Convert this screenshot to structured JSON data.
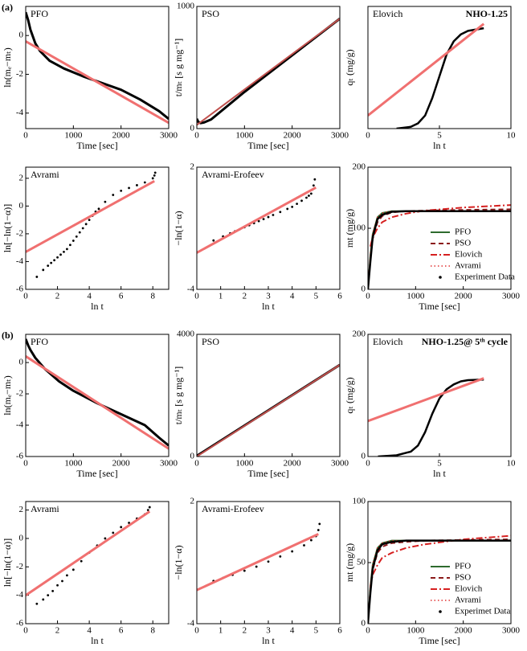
{
  "panel_labels": [
    "(a)",
    "(b)"
  ],
  "chart_data": [
    {
      "type": "line",
      "label": "PFO",
      "xlabel": "Time [sec]",
      "ylabel": "ln(mₑ−mₜ)",
      "xlim": [
        0,
        3000
      ],
      "xticks": [
        0,
        1000,
        2000,
        3000
      ],
      "ylim": [
        -4.8,
        1.5
      ],
      "yticks": [
        0,
        -2,
        -4
      ],
      "series": [
        {
          "color": "#000000",
          "mode": "line",
          "width": 3,
          "x": [
            0,
            50,
            100,
            200,
            300,
            500,
            800,
            1200,
            1600,
            2000,
            2400,
            2800,
            3000
          ],
          "values": [
            1.2,
            0.8,
            0.3,
            -0.4,
            -0.8,
            -1.3,
            -1.7,
            -2.1,
            -2.45,
            -2.8,
            -3.3,
            -3.9,
            -4.3
          ]
        },
        {
          "color": "#f07070",
          "mode": "line",
          "width": 3,
          "x": [
            0,
            3000
          ],
          "values": [
            -0.3,
            -4.5
          ]
        }
      ]
    },
    {
      "type": "line",
      "label": "PSO",
      "xlabel": "Time [sec]",
      "ylabel": "t/mₜ [s g mg⁻¹]",
      "xlim": [
        0,
        3000
      ],
      "xticks": [
        0,
        1000,
        2000,
        3000
      ],
      "ylim": [
        0,
        1000
      ],
      "yticks": [
        0,
        1000
      ],
      "series": [
        {
          "color": "#000000",
          "mode": "line",
          "width": 3,
          "x": [
            0,
            30,
            80,
            150,
            300,
            1000,
            2000,
            3000
          ],
          "values": [
            80,
            55,
            45,
            50,
            75,
            300,
            600,
            900
          ]
        },
        {
          "color": "#c0504d",
          "mode": "line",
          "width": 2,
          "x": [
            0,
            3000
          ],
          "values": [
            30,
            900
          ]
        }
      ]
    },
    {
      "type": "line",
      "label": "Elovich",
      "annotation": "NHO-1.25",
      "xlabel": "ln t",
      "ylabel": "qₜ (mg/g)",
      "xlim": [
        0,
        10
      ],
      "xticks": [
        0,
        5,
        10
      ],
      "ylim": [
        0,
        140
      ],
      "yticks": [],
      "series": [
        {
          "color": "#000000",
          "mode": "line",
          "width": 2.5,
          "x": [
            2,
            3,
            3.5,
            4,
            4.5,
            5,
            5.5,
            6,
            6.5,
            7,
            8.1
          ],
          "values": [
            0,
            2,
            6,
            15,
            35,
            60,
            85,
            100,
            108,
            112,
            115
          ]
        },
        {
          "color": "#f07070",
          "mode": "line",
          "width": 3,
          "x": [
            0,
            8.1
          ],
          "values": [
            15,
            120
          ]
        }
      ]
    },
    {
      "type": "line",
      "label": "Avrami",
      "xlabel": "ln t",
      "ylabel": "ln[−ln(1−α)]",
      "xlim": [
        0,
        9
      ],
      "xticks": [
        0,
        2,
        4,
        6,
        8
      ],
      "ylim": [
        -6,
        2.8
      ],
      "yticks": [
        2,
        0,
        -2,
        -4,
        -6
      ],
      "series": [
        {
          "color": "#000000",
          "mode": "points",
          "x": [
            0.7,
            1.1,
            1.4,
            1.6,
            1.8,
            2,
            2.2,
            2.4,
            2.6,
            2.8,
            3,
            3.2,
            3.4,
            3.6,
            3.8,
            4,
            4.2,
            4.4,
            4.6,
            5,
            5.5,
            6,
            6.5,
            7,
            7.5,
            8,
            8.1,
            8.15
          ],
          "values": [
            -5.1,
            -4.6,
            -4.3,
            -4.1,
            -3.9,
            -3.7,
            -3.5,
            -3.3,
            -3.1,
            -2.8,
            -2.5,
            -2.2,
            -1.9,
            -1.6,
            -1.3,
            -1.0,
            -0.7,
            -0.4,
            -0.2,
            0.3,
            0.8,
            1.1,
            1.3,
            1.5,
            1.7,
            2.0,
            2.2,
            2.4
          ]
        },
        {
          "color": "#f07070",
          "mode": "line",
          "width": 3,
          "x": [
            0,
            8.1
          ],
          "values": [
            -3.3,
            1.8
          ]
        }
      ]
    },
    {
      "type": "line",
      "label": "Avrami-Erofeev",
      "xlabel": "ln t",
      "ylabel": "−ln(1−α)",
      "xlim": [
        0,
        6
      ],
      "xticks": [
        0,
        1,
        2,
        3,
        4,
        5,
        6
      ],
      "ylim": [
        -4,
        2
      ],
      "yticks": [
        -4,
        2
      ],
      "series": [
        {
          "color": "#000000",
          "mode": "points",
          "x": [
            0.7,
            1.1,
            1.4,
            1.6,
            1.8,
            2,
            2.2,
            2.4,
            2.6,
            2.8,
            3,
            3.2,
            3.5,
            3.8,
            4,
            4.2,
            4.4,
            4.6,
            4.7,
            4.8,
            4.85,
            4.9,
            4.95
          ],
          "values": [
            -1.6,
            -1.4,
            -1.25,
            -1.15,
            -1.05,
            -0.95,
            -0.85,
            -0.75,
            -0.65,
            -0.55,
            -0.45,
            -0.35,
            -0.2,
            -0.05,
            0.05,
            0.2,
            0.35,
            0.5,
            0.6,
            0.7,
            0.9,
            1.1,
            1.4
          ]
        },
        {
          "color": "#f07070",
          "mode": "line",
          "width": 3,
          "x": [
            0,
            5
          ],
          "values": [
            -2.2,
            1.0
          ]
        }
      ]
    },
    {
      "type": "line",
      "xlabel": "Time [sec]",
      "ylabel": "mt (mg/g)",
      "xlim": [
        0,
        3000
      ],
      "xticks": [
        0,
        1000,
        2000,
        3000
      ],
      "ylim": [
        0,
        200
      ],
      "yticks": [
        0,
        100,
        200
      ],
      "legend": "lower right",
      "series": [
        {
          "name": "PFO",
          "color": "#2e6b2e",
          "mode": "line",
          "width": 2,
          "x": [
            0,
            50,
            100,
            200,
            300,
            500,
            800,
            1200,
            2000,
            3000
          ],
          "values": [
            0,
            55,
            90,
            118,
            125,
            128,
            128,
            128,
            128,
            128
          ]
        },
        {
          "name": "PSO",
          "color": "#8b1a1a",
          "mode": "line",
          "dash": "dashed",
          "width": 2,
          "x": [
            0,
            50,
            100,
            200,
            300,
            500,
            800,
            1200,
            2000,
            3000
          ],
          "values": [
            0,
            50,
            82,
            110,
            120,
            126,
            128,
            129,
            130,
            131
          ]
        },
        {
          "name": "Elovich",
          "color": "#d62020",
          "mode": "line",
          "dash": "dashdot",
          "width": 2,
          "x": [
            50,
            100,
            200,
            300,
            500,
            800,
            1200,
            2000,
            3000
          ],
          "values": [
            70,
            85,
            100,
            110,
            118,
            124,
            129,
            134,
            138
          ]
        },
        {
          "name": "Avrami",
          "color": "#e03030",
          "mode": "line",
          "dash": "dotted",
          "width": 1.5,
          "x": [
            0,
            50,
            100,
            200,
            300,
            500,
            800,
            1200,
            2000,
            3000
          ],
          "values": [
            0,
            58,
            92,
            118,
            125,
            128,
            128,
            128,
            128,
            128
          ]
        },
        {
          "name": "Experiment Data",
          "color": "#000000",
          "mode": "line",
          "width": 2.5,
          "x": [
            0,
            50,
            100,
            200,
            300,
            500,
            800,
            1200,
            2000,
            3000
          ],
          "values": [
            0,
            45,
            85,
            115,
            122,
            127,
            128,
            128,
            128,
            128
          ]
        }
      ]
    },
    {
      "type": "line",
      "label": "PFO",
      "xlabel": "Time [sec]",
      "ylabel": "ln(mₑ−mₜ)",
      "xlim": [
        0,
        3000
      ],
      "xticks": [
        0,
        1000,
        2000,
        3000
      ],
      "ylim": [
        -6,
        1.8
      ],
      "yticks": [
        0,
        -2,
        -4,
        -6
      ],
      "series": [
        {
          "color": "#000000",
          "mode": "line",
          "width": 3,
          "x": [
            0,
            50,
            100,
            200,
            400,
            700,
            1000,
            1500,
            2000,
            2500,
            2800,
            3000
          ],
          "values": [
            1.5,
            1.1,
            0.8,
            0.3,
            -0.4,
            -1.2,
            -1.8,
            -2.6,
            -3.3,
            -4.0,
            -4.8,
            -5.3
          ]
        },
        {
          "color": "#f07070",
          "mode": "line",
          "width": 3,
          "x": [
            0,
            3000
          ],
          "values": [
            0.4,
            -5.5
          ]
        }
      ]
    },
    {
      "type": "line",
      "label": "PSO",
      "xlabel": "Time [sec]",
      "ylabel": "t/mₜ [s g mg⁻¹]",
      "xlim": [
        0,
        3000
      ],
      "xticks": [
        0,
        1000,
        2000,
        3000
      ],
      "ylim": [
        0,
        4000
      ],
      "yticks": [
        0,
        4000
      ],
      "series": [
        {
          "color": "#000000",
          "mode": "line",
          "width": 3,
          "x": [
            0,
            3000
          ],
          "values": [
            20,
            3000
          ]
        },
        {
          "color": "#c0504d",
          "mode": "line",
          "width": 2,
          "x": [
            0,
            3000
          ],
          "values": [
            0,
            3000
          ]
        }
      ]
    },
    {
      "type": "line",
      "label": "Elovich",
      "annotation": "NHO-1.25@ 5ᵗʰ cycle",
      "xlabel": "ln t",
      "ylabel": "qₜ (mg/g)",
      "xlim": [
        0,
        10
      ],
      "xticks": [
        0,
        5,
        10
      ],
      "ylim": [
        0,
        200
      ],
      "yticks": [
        0,
        200
      ],
      "series": [
        {
          "color": "#000000",
          "mode": "line",
          "width": 2.5,
          "x": [
            0.7,
            2,
            3,
            3.5,
            4,
            4.5,
            5,
            5.5,
            6,
            6.5,
            7,
            8.1
          ],
          "values": [
            0,
            2,
            8,
            18,
            40,
            70,
            95,
            110,
            118,
            123,
            125,
            126
          ]
        },
        {
          "color": "#f07070",
          "mode": "line",
          "width": 3,
          "x": [
            0,
            8.1
          ],
          "values": [
            58,
            128
          ]
        }
      ]
    },
    {
      "type": "line",
      "label": "Avrami",
      "xlabel": "ln t",
      "ylabel": "ln[−ln(1−α)]",
      "xlim": [
        0,
        9
      ],
      "xticks": [
        0,
        2,
        4,
        6,
        8
      ],
      "ylim": [
        -6,
        2.6
      ],
      "yticks": [
        2,
        0,
        -2,
        -4,
        -6
      ],
      "series": [
        {
          "color": "#000000",
          "mode": "points",
          "x": [
            0.7,
            1.1,
            1.4,
            1.7,
            2,
            2.3,
            2.6,
            3,
            3.5,
            4,
            4.5,
            5,
            5.5,
            6,
            6.5,
            7,
            7.5,
            7.7,
            7.8
          ],
          "values": [
            -4.6,
            -4.3,
            -4.0,
            -3.7,
            -3.3,
            -3.0,
            -2.6,
            -2.2,
            -1.6,
            -1.0,
            -0.5,
            0,
            0.4,
            0.8,
            1.1,
            1.4,
            1.7,
            2.0,
            2.2
          ]
        },
        {
          "color": "#f07070",
          "mode": "line",
          "width": 3,
          "x": [
            0,
            7.8
          ],
          "values": [
            -4.0,
            1.9
          ]
        }
      ]
    },
    {
      "type": "line",
      "label": "Avrami-Erofeev",
      "xlabel": "ln t",
      "ylabel": "−ln(1−α)",
      "xlim": [
        0,
        6
      ],
      "xticks": [
        0,
        1,
        2,
        3,
        4,
        5,
        6
      ],
      "ylim": [
        -4,
        2
      ],
      "yticks": [
        -4,
        2
      ],
      "series": [
        {
          "color": "#000000",
          "mode": "points",
          "x": [
            0.7,
            1.1,
            1.5,
            2,
            2.5,
            3,
            3.5,
            4,
            4.5,
            4.8,
            5,
            5.1,
            5.15
          ],
          "values": [
            -1.9,
            -1.75,
            -1.6,
            -1.4,
            -1.2,
            -0.95,
            -0.7,
            -0.45,
            -0.15,
            0.1,
            0.3,
            0.6,
            0.9
          ]
        },
        {
          "color": "#f07070",
          "mode": "line",
          "width": 3,
          "x": [
            0,
            5.1
          ],
          "values": [
            -2.35,
            0.4
          ]
        }
      ]
    },
    {
      "type": "line",
      "xlabel": "Time [sec]",
      "ylabel": "mt (mg/g)",
      "xlim": [
        0,
        3000
      ],
      "xticks": [
        0,
        1000,
        2000,
        3000
      ],
      "ylim": [
        0,
        100
      ],
      "yticks": [
        0,
        50,
        100
      ],
      "legend": "lower right",
      "series": [
        {
          "name": "PFO",
          "color": "#2e6b2e",
          "mode": "line",
          "width": 2,
          "x": [
            0,
            50,
            100,
            200,
            300,
            500,
            800,
            1200,
            2000,
            3000
          ],
          "values": [
            0,
            30,
            48,
            62,
            66,
            68,
            68,
            68,
            68,
            68
          ]
        },
        {
          "name": "PSO",
          "color": "#8b1a1a",
          "mode": "line",
          "dash": "dashed",
          "width": 2,
          "x": [
            0,
            50,
            100,
            200,
            300,
            500,
            800,
            1200,
            2000,
            3000
          ],
          "values": [
            0,
            28,
            44,
            58,
            63,
            66,
            67,
            68,
            68.5,
            69
          ]
        },
        {
          "name": "Elovich",
          "color": "#d62020",
          "mode": "line",
          "dash": "dashdot",
          "width": 2,
          "x": [
            50,
            100,
            200,
            300,
            500,
            800,
            1200,
            2000,
            3000
          ],
          "values": [
            30,
            40,
            48,
            54,
            58,
            62,
            65,
            69,
            72
          ]
        },
        {
          "name": "Avrami",
          "color": "#e03030",
          "mode": "line",
          "dash": "dotted",
          "width": 1.5,
          "x": [
            0,
            50,
            100,
            200,
            300,
            500,
            800,
            1200,
            2000,
            3000
          ],
          "values": [
            0,
            31,
            49,
            62,
            66,
            68,
            68,
            68,
            68,
            68
          ]
        },
        {
          "name": "Experimet Data",
          "color": "#000000",
          "mode": "line",
          "width": 2.5,
          "x": [
            0,
            50,
            100,
            200,
            300,
            500,
            800,
            1200,
            2000,
            3000
          ],
          "values": [
            0,
            25,
            45,
            60,
            65,
            67,
            68,
            68,
            68,
            68
          ]
        }
      ]
    }
  ]
}
